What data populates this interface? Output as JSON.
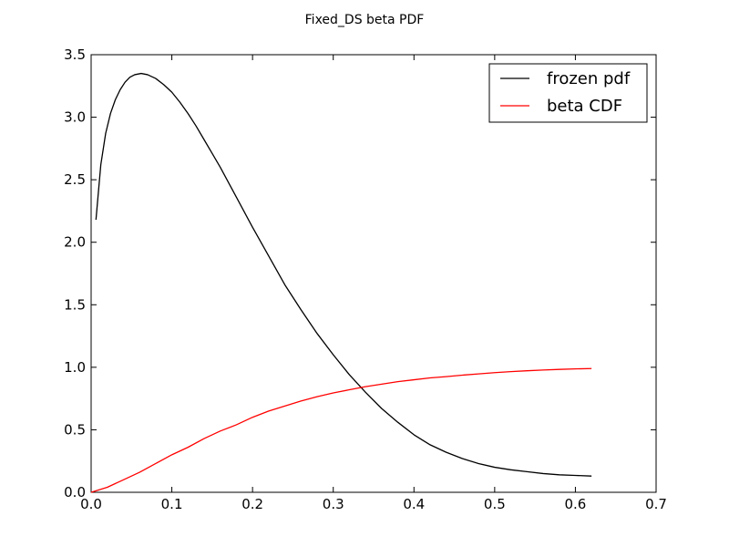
{
  "chart_data": {
    "type": "line",
    "title": "Fixed_DS beta PDF",
    "xlabel": "",
    "ylabel": "",
    "xlim": [
      0,
      0.7
    ],
    "ylim": [
      0,
      3.5
    ],
    "x_ticks": [
      "0.0",
      "0.1",
      "0.2",
      "0.3",
      "0.4",
      "0.5",
      "0.6",
      "0.7"
    ],
    "y_ticks": [
      "0.0",
      "0.5",
      "1.0",
      "1.5",
      "2.0",
      "2.5",
      "3.0",
      "3.5"
    ],
    "grid": false,
    "legend_position": "top-right",
    "series": [
      {
        "name": "frozen pdf",
        "color": "#000000",
        "x": [
          0.006,
          0.012,
          0.018,
          0.024,
          0.03,
          0.036,
          0.042,
          0.048,
          0.054,
          0.062,
          0.07,
          0.08,
          0.09,
          0.1,
          0.11,
          0.12,
          0.13,
          0.14,
          0.15,
          0.16,
          0.18,
          0.2,
          0.22,
          0.24,
          0.26,
          0.28,
          0.3,
          0.32,
          0.34,
          0.36,
          0.38,
          0.4,
          0.42,
          0.44,
          0.46,
          0.48,
          0.5,
          0.52,
          0.54,
          0.56,
          0.58,
          0.6,
          0.62
        ],
        "y": [
          2.18,
          2.62,
          2.87,
          3.03,
          3.14,
          3.22,
          3.28,
          3.32,
          3.34,
          3.35,
          3.34,
          3.31,
          3.26,
          3.2,
          3.12,
          3.03,
          2.93,
          2.82,
          2.71,
          2.6,
          2.36,
          2.12,
          1.89,
          1.66,
          1.46,
          1.27,
          1.1,
          0.94,
          0.8,
          0.67,
          0.56,
          0.46,
          0.38,
          0.32,
          0.27,
          0.23,
          0.2,
          0.18,
          0.165,
          0.15,
          0.14,
          0.135,
          0.13
        ]
      },
      {
        "name": "beta CDF",
        "color": "#ff0000",
        "x": [
          0.0,
          0.02,
          0.04,
          0.06,
          0.08,
          0.1,
          0.12,
          0.14,
          0.16,
          0.18,
          0.2,
          0.22,
          0.24,
          0.26,
          0.28,
          0.3,
          0.32,
          0.34,
          0.36,
          0.38,
          0.4,
          0.42,
          0.44,
          0.46,
          0.48,
          0.5,
          0.52,
          0.54,
          0.56,
          0.58,
          0.6,
          0.62
        ],
        "y": [
          0.0,
          0.04,
          0.1,
          0.16,
          0.23,
          0.3,
          0.36,
          0.43,
          0.49,
          0.54,
          0.6,
          0.65,
          0.69,
          0.73,
          0.765,
          0.795,
          0.82,
          0.845,
          0.865,
          0.885,
          0.9,
          0.915,
          0.925,
          0.937,
          0.947,
          0.957,
          0.965,
          0.972,
          0.978,
          0.983,
          0.987,
          0.99
        ]
      }
    ]
  }
}
